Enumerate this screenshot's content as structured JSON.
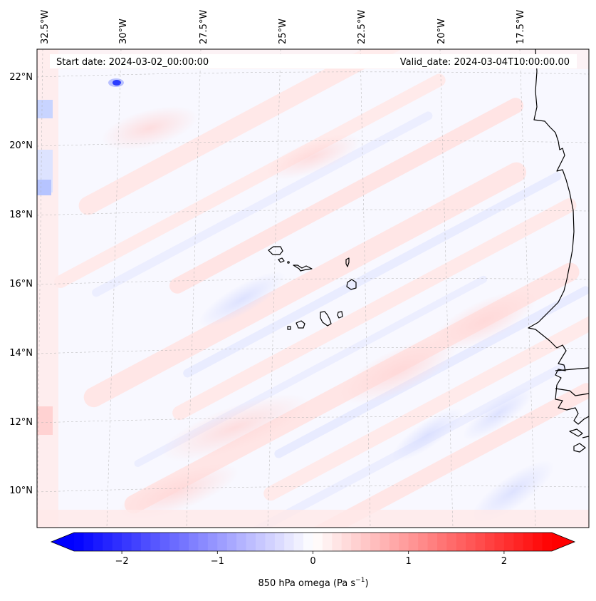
{
  "map": {
    "lon_labels": [
      "32.5°W",
      "30°W",
      "27.5°W",
      "25°W",
      "22.5°W",
      "20°W",
      "17.5°W"
    ],
    "lat_labels": [
      "22°N",
      "20°N",
      "18°N",
      "16°N",
      "14°N",
      "12°N",
      "10°N"
    ],
    "start_date": "Start date: 2024-03-02_00:00:00",
    "valid_date": "Valid_date: 2024-03-04T10:00:00.00"
  },
  "colorbar": {
    "ticks": [
      "−2",
      "−1",
      "0",
      "1",
      "2"
    ],
    "tick_values": [
      -2,
      -1,
      0,
      1,
      2
    ],
    "vmin": -2.5,
    "vmax": 2.5,
    "label_main": "850 hPa omega (Pa s",
    "label_sup": "−1",
    "label_end": ")",
    "colors": {
      "low": "#0000ff",
      "mid": "#ffffff",
      "high": "#ff0000"
    }
  }
}
